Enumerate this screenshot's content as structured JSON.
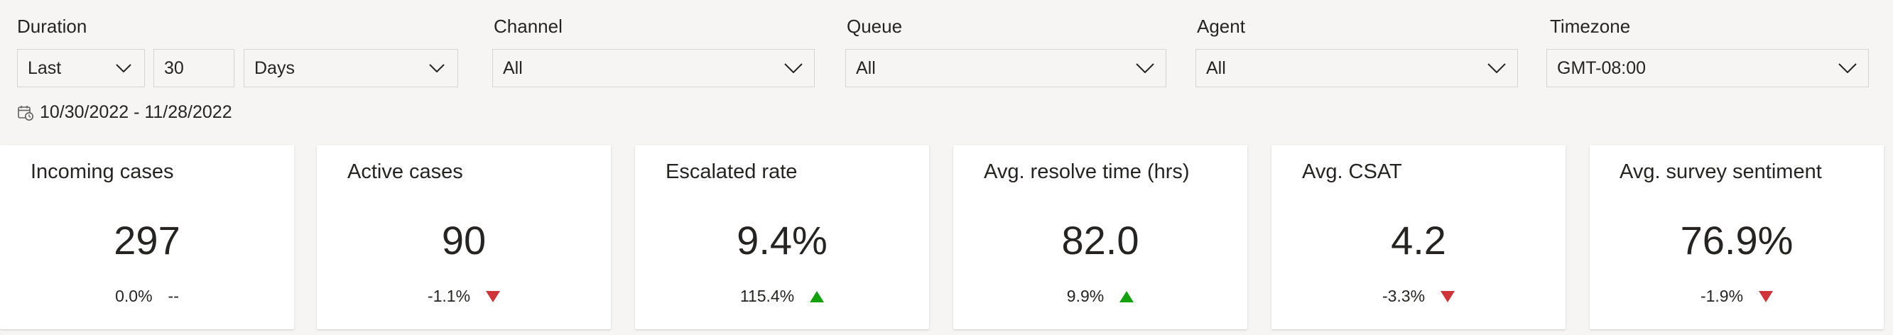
{
  "filters": {
    "duration": {
      "label": "Duration",
      "period": "Last",
      "amount": "30",
      "unit": "Days"
    },
    "channel": {
      "label": "Channel",
      "value": "All"
    },
    "queue": {
      "label": "Queue",
      "value": "All"
    },
    "agent": {
      "label": "Agent",
      "value": "All"
    },
    "timezone": {
      "label": "Timezone",
      "value": "GMT-08:00"
    },
    "date_range": "10/30/2022 - 11/28/2022"
  },
  "kpis": [
    {
      "title": "Incoming cases",
      "value": "297",
      "change": "0.0%",
      "trend": "none",
      "trend_text": "--"
    },
    {
      "title": "Active cases",
      "value": "90",
      "change": "-1.1%",
      "trend": "down"
    },
    {
      "title": "Escalated rate",
      "value": "9.4%",
      "change": "115.4%",
      "trend": "up"
    },
    {
      "title": "Avg. resolve time (hrs)",
      "value": "82.0",
      "change": "9.9%",
      "trend": "up"
    },
    {
      "title": "Avg. CSAT",
      "value": "4.2",
      "change": "-3.3%",
      "trend": "down"
    },
    {
      "title": "Avg. survey sentiment",
      "value": "76.9%",
      "change": "-1.9%",
      "trend": "down"
    }
  ],
  "colors": {
    "trend_up": "#13a10e",
    "trend_down": "#d13438"
  },
  "icons": {
    "dropdown": "chevron-down-icon",
    "date_range": "calendar-clock-icon"
  }
}
